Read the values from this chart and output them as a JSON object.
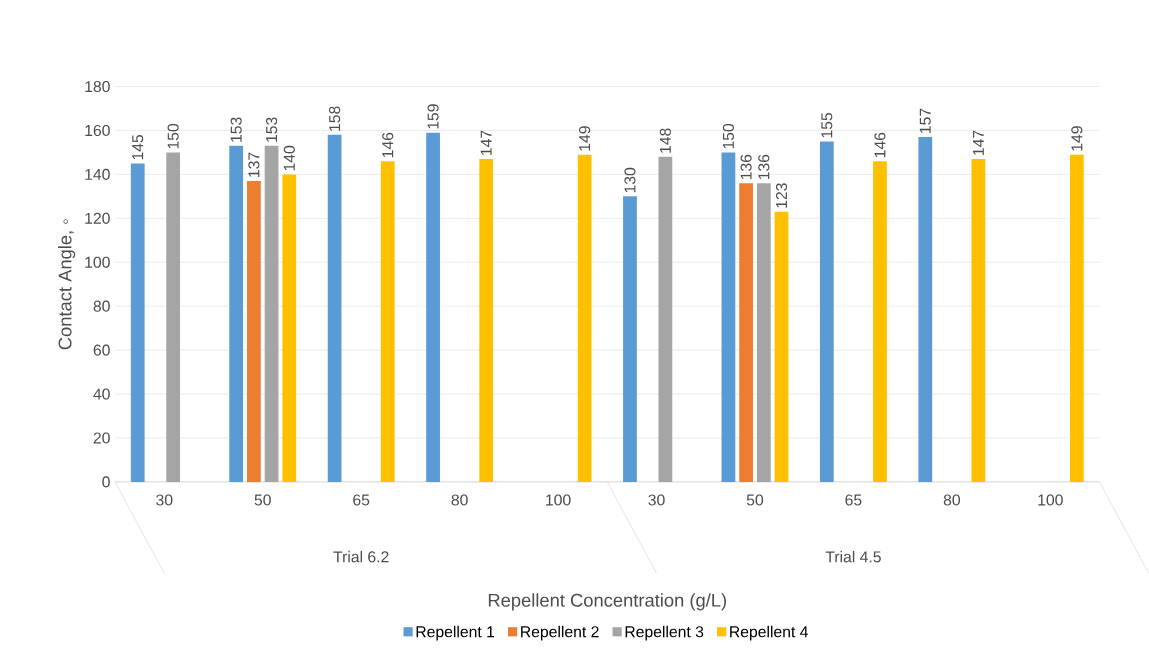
{
  "chart_data": {
    "type": "bar",
    "xlabel": "Repellent Concentration (g/L)",
    "ylabel": "Contact Angle, ◦",
    "categories": [
      "30",
      "50",
      "65",
      "80",
      "100",
      "30",
      "50",
      "65",
      "80",
      "100"
    ],
    "annotations": [
      "Trial 6.2",
      "Trial 4.5"
    ],
    "series": [
      {
        "name": "Repellent 1",
        "color": "#5b9bd5",
        "values": [
          145,
          153,
          158,
          159,
          null,
          130,
          150,
          155,
          157,
          null
        ]
      },
      {
        "name": "Repellent 2",
        "color": "#ed7d31",
        "values": [
          null,
          137,
          null,
          null,
          null,
          null,
          136,
          null,
          null,
          null
        ]
      },
      {
        "name": "Repellent 3",
        "color": "#a5a5a5",
        "values": [
          150,
          153,
          null,
          null,
          null,
          148,
          136,
          null,
          null,
          null
        ]
      },
      {
        "name": "Repellent 4",
        "color": "#ffc000",
        "values": [
          null,
          140,
          146,
          147,
          149,
          null,
          123,
          146,
          147,
          149
        ]
      }
    ],
    "ylim": [
      0,
      180
    ],
    "yticks": [
      0,
      20,
      40,
      60,
      80,
      100,
      120,
      140,
      160,
      180
    ],
    "grid": "y",
    "legend": "bottom",
    "data_labels": true
  }
}
